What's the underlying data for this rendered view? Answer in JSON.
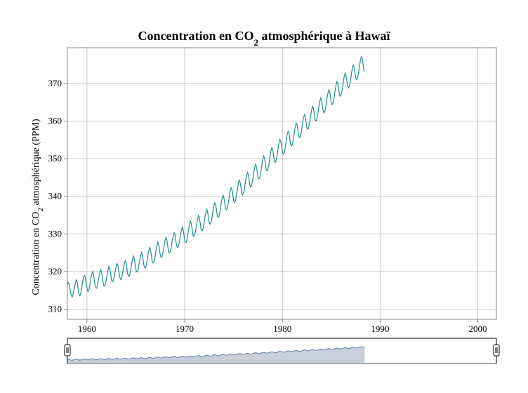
{
  "chart_data": {
    "type": "line",
    "title": {
      "prefix": "Concentration en CO",
      "subscript": "2",
      "suffix": " atmosphérique à Hawaï"
    },
    "ylabel": {
      "prefix": "Concentration en CO",
      "subscript": "2",
      "suffix": " atmosphérique (PPM)"
    },
    "xlabel": "",
    "x_ticks": [
      1960,
      1970,
      1980,
      1990,
      2000
    ],
    "y_ticks": [
      310,
      320,
      330,
      340,
      350,
      360,
      370
    ],
    "xlim": [
      1958.0,
      2001.9
    ],
    "ylim": [
      307.3,
      379.5
    ],
    "grid": true,
    "colors": {
      "line": "#1f8f8f",
      "grid": "#c8c8c8",
      "navigator_fill": "#c9cedb",
      "navigator_line": "#5a7fa8"
    },
    "series": [
      {
        "x_start": 1958.0,
        "x_step": 0.0833333,
        "values": [
          316.3,
          317.1,
          316.8,
          315.6,
          314.2,
          313.5,
          313.3,
          313.9,
          315.0,
          316.1,
          317.1,
          317.8,
          317.1,
          315.7,
          314.2,
          313.6,
          313.8,
          314.9,
          316.3,
          317.6,
          318.5,
          319.0,
          318.4,
          317.0,
          315.5,
          314.8,
          314.8,
          315.6,
          316.9,
          318.3,
          319.4,
          320.0,
          319.3,
          317.8,
          316.3,
          315.7,
          315.6,
          316.4,
          317.6,
          318.9,
          319.8,
          320.5,
          319.8,
          318.4,
          316.8,
          316.1,
          316.3,
          317.0,
          318.1,
          319.4,
          320.6,
          321.4,
          320.8,
          319.4,
          318.0,
          317.3,
          317.3,
          318.1,
          319.2,
          320.5,
          321.5,
          322.1,
          321.6,
          320.2,
          318.7,
          318.0,
          317.9,
          318.7,
          319.9,
          321.1,
          322.2,
          322.9,
          322.3,
          320.9,
          319.4,
          318.8,
          318.8,
          319.6,
          320.8,
          322.2,
          323.2,
          324.1,
          323.5,
          322.1,
          320.6,
          319.9,
          320.0,
          320.7,
          322.0,
          323.3,
          324.3,
          325.1,
          324.5,
          323.1,
          321.6,
          321.0,
          321.0,
          321.8,
          323.0,
          324.5,
          325.6,
          326.4,
          325.8,
          324.5,
          322.9,
          322.3,
          322.5,
          323.1,
          324.5,
          325.9,
          326.9,
          327.8,
          327.3,
          326.0,
          324.4,
          323.8,
          323.9,
          324.8,
          325.9,
          327.2,
          328.4,
          329.1,
          328.5,
          327.1,
          325.5,
          324.9,
          325.2,
          326.0,
          327.1,
          328.5,
          329.5,
          330.3,
          329.8,
          328.5,
          326.9,
          326.4,
          326.5,
          327.3,
          328.6,
          329.9,
          330.9,
          331.8,
          331.3,
          329.9,
          328.3,
          327.8,
          327.8,
          328.7,
          330.0,
          331.4,
          332.6,
          333.4,
          332.8,
          331.5,
          329.9,
          329.3,
          329.5,
          330.4,
          331.6,
          333.0,
          334.1,
          334.9,
          334.3,
          333.0,
          331.4,
          330.8,
          331.0,
          331.8,
          333.1,
          334.6,
          335.7,
          336.5,
          336.0,
          334.7,
          333.1,
          332.6,
          332.8,
          333.7,
          334.9,
          336.4,
          337.6,
          338.3,
          337.8,
          336.5,
          334.9,
          334.4,
          334.6,
          335.5,
          336.8,
          338.3,
          339.5,
          340.3,
          339.8,
          338.5,
          336.9,
          336.4,
          336.6,
          337.5,
          338.8,
          340.3,
          341.5,
          342.3,
          341.8,
          340.5,
          338.9,
          338.4,
          338.6,
          339.5,
          340.8,
          342.3,
          343.5,
          344.3,
          343.8,
          342.5,
          340.9,
          340.4,
          340.7,
          341.6,
          342.9,
          344.4,
          345.6,
          346.4,
          345.9,
          344.6,
          343.0,
          342.5,
          342.8,
          343.7,
          345.0,
          346.5,
          347.7,
          348.5,
          348.0,
          346.7,
          345.1,
          344.6,
          344.9,
          345.8,
          347.1,
          348.7,
          349.9,
          350.7,
          350.2,
          348.9,
          347.3,
          346.8,
          347.1,
          348.0,
          349.3,
          350.9,
          352.1,
          352.9,
          352.4,
          351.1,
          349.5,
          349.0,
          349.3,
          350.2,
          351.5,
          353.1,
          354.3,
          355.1,
          354.6,
          353.3,
          351.7,
          351.2,
          351.5,
          352.4,
          353.7,
          355.3,
          356.5,
          357.3,
          356.8,
          355.5,
          353.9,
          353.4,
          353.7,
          354.6,
          355.9,
          357.5,
          358.7,
          359.5,
          359.0,
          357.7,
          356.1,
          355.6,
          355.9,
          356.8,
          358.1,
          359.7,
          360.9,
          361.7,
          361.2,
          359.9,
          358.3,
          357.8,
          358.1,
          359.0,
          360.3,
          361.9,
          363.1,
          363.9,
          363.4,
          362.1,
          360.5,
          360.0,
          360.3,
          361.2,
          362.5,
          364.1,
          365.3,
          366.1,
          365.6,
          364.3,
          362.7,
          362.2,
          362.5,
          363.4,
          364.7,
          366.3,
          367.5,
          368.3,
          367.8,
          366.5,
          364.9,
          364.4,
          364.7,
          365.6,
          366.9,
          368.5,
          369.7,
          370.5,
          370.0,
          368.7,
          367.1,
          366.6,
          366.9,
          367.8,
          369.1,
          370.7,
          371.9,
          372.7,
          372.2,
          370.9,
          369.3,
          368.8,
          369.1,
          370.0,
          371.3,
          372.9,
          374.1,
          374.9,
          374.4,
          373.1,
          371.5,
          371.0,
          371.3,
          372.2,
          373.5,
          375.1,
          376.3,
          377.1,
          376.6,
          375.3,
          373.7,
          373.2
        ]
      }
    ]
  }
}
